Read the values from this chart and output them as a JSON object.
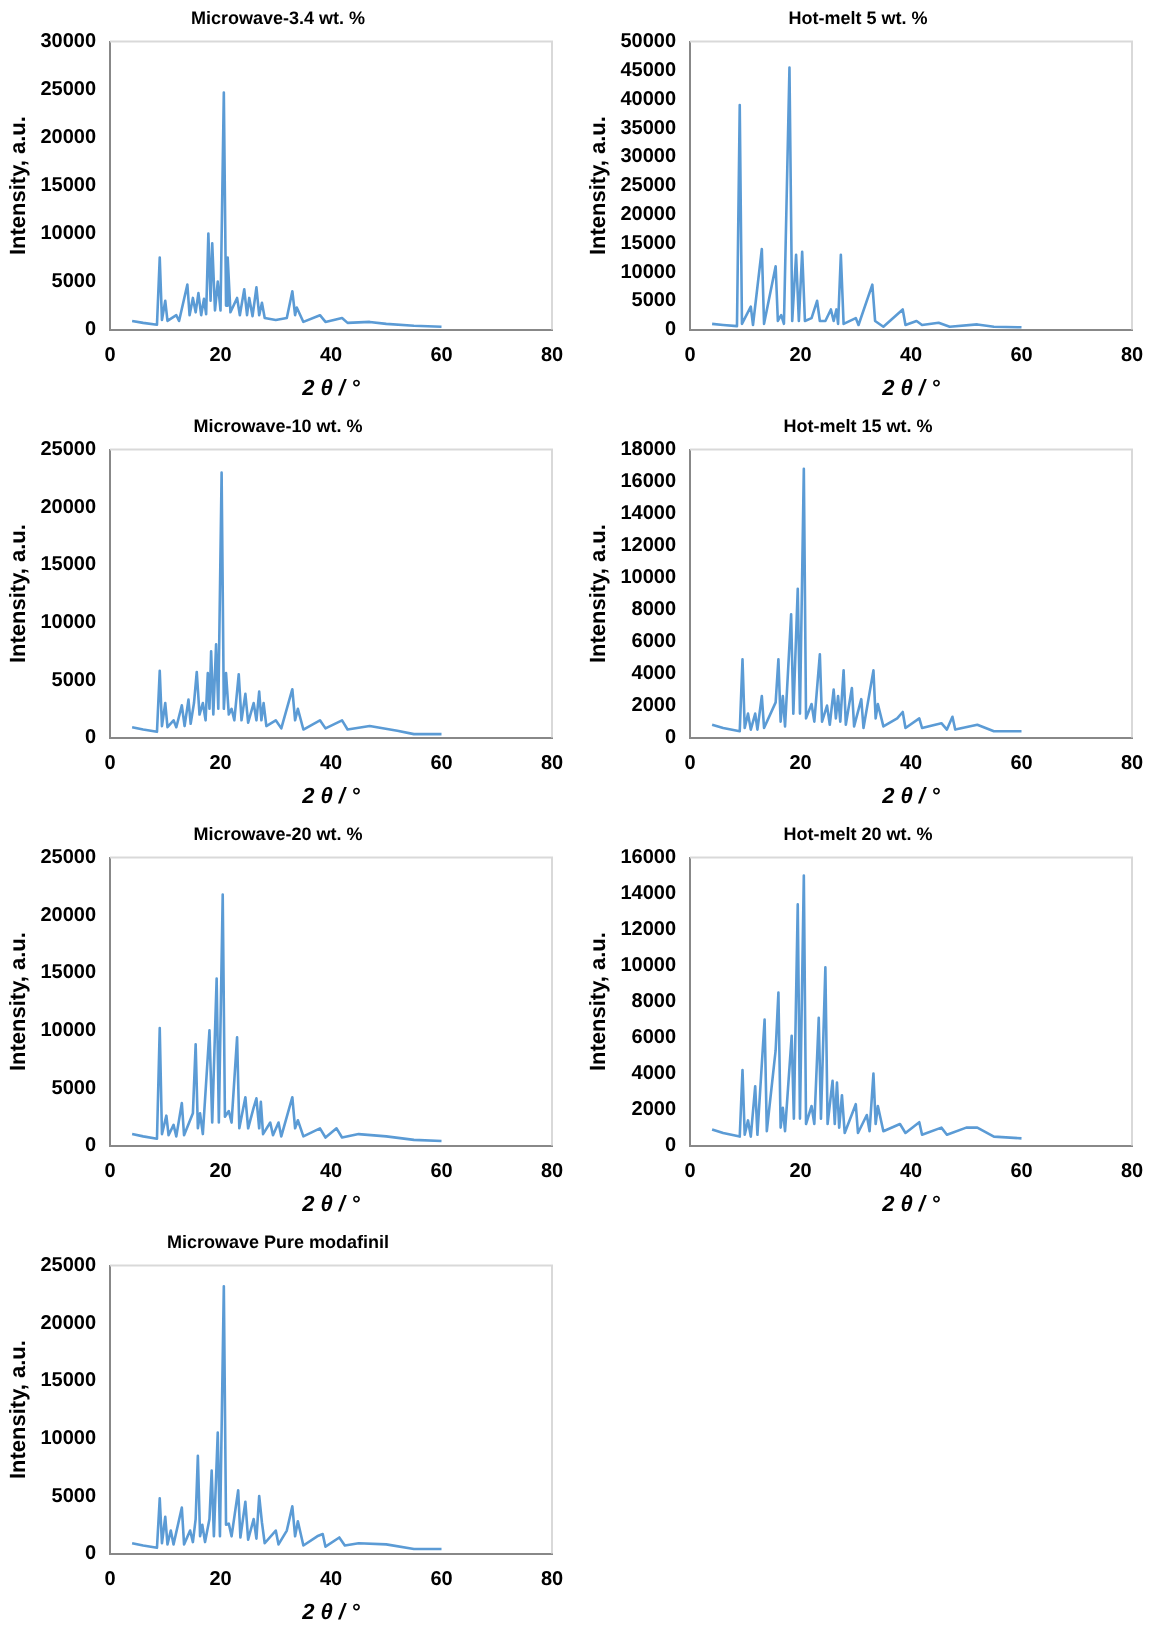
{
  "chart_data": [
    {
      "type": "line",
      "title": "Microwave-3.4 wt. %",
      "xlabel": "2 θ / °",
      "ylabel": "Intensity, a.u.",
      "marker": "none",
      "xlim": [
        0,
        80
      ],
      "xticks": [
        0,
        20,
        40,
        60,
        80
      ],
      "ylim": [
        0,
        30000
      ],
      "yticks": [
        0,
        5000,
        10000,
        15000,
        20000,
        25000,
        30000
      ],
      "x": [
        4,
        6,
        8.5,
        9,
        9.4,
        10,
        10.4,
        12,
        12.5,
        14,
        14.4,
        15,
        15.5,
        16,
        16.5,
        17,
        17.4,
        17.8,
        18.2,
        18.5,
        19,
        19.5,
        20,
        20.6,
        21,
        21.3,
        21.8,
        23,
        23.5,
        24.3,
        24.8,
        25.2,
        25.8,
        26.5,
        27,
        27.5,
        28,
        30,
        32,
        33,
        33.5,
        33.8,
        35,
        38,
        39,
        42,
        43,
        47,
        50,
        55,
        60
      ],
      "series": [
        {
          "color": "#5b9bd5",
          "values": [
            900,
            700,
            500,
            7500,
            1000,
            3000,
            900,
            1500,
            900,
            4700,
            1500,
            3300,
            1800,
            3800,
            1500,
            3200,
            1600,
            10000,
            3000,
            9000,
            2000,
            5000,
            2000,
            24700,
            2500,
            7500,
            1800,
            3300,
            1500,
            4200,
            1500,
            3300,
            1400,
            4400,
            1500,
            2800,
            1200,
            1000,
            1200,
            4000,
            1500,
            2300,
            800,
            1500,
            800,
            1200,
            700,
            800,
            600,
            400,
            300
          ]
        }
      ]
    },
    {
      "type": "line",
      "title": "Hot-melt 5 wt. %",
      "xlabel": "2 θ / °",
      "ylabel": "Intensity, a.u.",
      "marker": "none",
      "xlim": [
        0,
        80
      ],
      "xticks": [
        0,
        20,
        40,
        60,
        80
      ],
      "ylim": [
        0,
        50000
      ],
      "yticks": [
        0,
        5000,
        10000,
        15000,
        20000,
        25000,
        30000,
        35000,
        40000,
        45000,
        50000
      ],
      "x": [
        4,
        6,
        8.5,
        9,
        9.4,
        11,
        11.4,
        13,
        13.4,
        15.5,
        15.9,
        16.5,
        17,
        18,
        18.5,
        19.2,
        19.7,
        20.3,
        20.8,
        22,
        23,
        23.5,
        24.5,
        25.5,
        26,
        26.5,
        26.8,
        27.3,
        27.8,
        30,
        30.5,
        33,
        33.5,
        35,
        38.5,
        39,
        41,
        42,
        45,
        47,
        52,
        55,
        60
      ],
      "series": [
        {
          "color": "#5b9bd5",
          "values": [
            1000,
            800,
            600,
            39000,
            1000,
            4000,
            800,
            14000,
            1000,
            11000,
            1500,
            2500,
            1000,
            45500,
            1500,
            13000,
            1500,
            13500,
            1500,
            2000,
            5000,
            1500,
            1500,
            3500,
            1500,
            3500,
            1000,
            13000,
            1000,
            2000,
            800,
            7800,
            1500,
            500,
            3500,
            800,
            1500,
            800,
            1200,
            500,
            900,
            500,
            400
          ]
        }
      ]
    },
    {
      "type": "line",
      "title": "Microwave-10 wt. %",
      "xlabel": "2 θ / °",
      "ylabel": "Intensity, a.u.",
      "marker": "none",
      "xlim": [
        0,
        80
      ],
      "xticks": [
        0,
        20,
        40,
        60,
        80
      ],
      "ylim": [
        0,
        25000
      ],
      "yticks": [
        0,
        5000,
        10000,
        15000,
        20000,
        25000
      ],
      "x": [
        4,
        6,
        8.5,
        9,
        9.4,
        10,
        10.4,
        11.5,
        12,
        13,
        13.5,
        14.2,
        14.6,
        15.2,
        15.7,
        16.2,
        16.8,
        17.3,
        17.7,
        18,
        18.3,
        18.7,
        19.2,
        19.6,
        20.2,
        20.6,
        21,
        21.5,
        22,
        22.5,
        23.3,
        23.8,
        24.5,
        25,
        26,
        26.5,
        27,
        27.4,
        27.8,
        28.3,
        30,
        31,
        33,
        33.5,
        34,
        35,
        38,
        39,
        42,
        43,
        47,
        52,
        55,
        60
      ],
      "series": [
        {
          "color": "#5b9bd5",
          "values": [
            900,
            700,
            500,
            5800,
            1000,
            3000,
            900,
            1500,
            900,
            2800,
            1000,
            3300,
            1200,
            3000,
            5700,
            2000,
            3000,
            1500,
            5600,
            2500,
            7500,
            2000,
            8100,
            2500,
            23000,
            2500,
            5600,
            2000,
            2500,
            1500,
            5500,
            1500,
            3800,
            1300,
            3000,
            1500,
            4000,
            1500,
            3000,
            1000,
            1500,
            800,
            4200,
            1500,
            2500,
            700,
            1500,
            800,
            1500,
            700,
            1000,
            600,
            300,
            300
          ]
        }
      ]
    },
    {
      "type": "line",
      "title": "Hot-melt 15 wt. %",
      "xlabel": "2 θ / °",
      "ylabel": "Intensity, a.u.",
      "marker": "none",
      "xlim": [
        0,
        80
      ],
      "xticks": [
        0,
        20,
        40,
        60,
        80
      ],
      "ylim": [
        0,
        18000
      ],
      "yticks": [
        0,
        2000,
        4000,
        6000,
        8000,
        10000,
        12000,
        14000,
        16000,
        18000
      ],
      "x": [
        4,
        6,
        9,
        9.5,
        9.9,
        10.5,
        11,
        11.8,
        12.2,
        13,
        13.4,
        15.5,
        16,
        16.4,
        16.8,
        17.2,
        18.3,
        18.7,
        19.5,
        19.9,
        20.6,
        21,
        22,
        22.5,
        23.5,
        23.9,
        24.8,
        25.3,
        26,
        26.4,
        26.8,
        27.2,
        27.8,
        28.2,
        29.3,
        29.7,
        31,
        31.4,
        33.2,
        33.6,
        34,
        35,
        37.5,
        38.5,
        39,
        41.5,
        42,
        45.5,
        46.5,
        47.5,
        48,
        52,
        55,
        60
      ],
      "series": [
        {
          "color": "#5b9bd5",
          "values": [
            800,
            600,
            400,
            4900,
            600,
            1500,
            500,
            1500,
            500,
            2600,
            600,
            2200,
            4900,
            1000,
            2600,
            700,
            7700,
            1500,
            9300,
            1500,
            16800,
            1200,
            2100,
            1000,
            5200,
            1000,
            2000,
            800,
            3000,
            1200,
            2600,
            1000,
            4200,
            800,
            3100,
            700,
            2400,
            600,
            4200,
            1200,
            2100,
            700,
            1200,
            1600,
            600,
            1200,
            600,
            900,
            500,
            1300,
            500,
            800,
            400,
            400
          ]
        }
      ]
    },
    {
      "type": "line",
      "title": "Microwave-20 wt. %",
      "xlabel": "2 θ / °",
      "ylabel": "Intensity, a.u.",
      "marker": "none",
      "xlim": [
        0,
        80
      ],
      "xticks": [
        0,
        20,
        40,
        60,
        80
      ],
      "ylim": [
        0,
        25000
      ],
      "yticks": [
        0,
        5000,
        10000,
        15000,
        20000,
        25000
      ],
      "x": [
        4,
        6,
        8.5,
        9,
        9.4,
        10.2,
        10.6,
        11.5,
        12,
        13,
        13.4,
        15,
        15.5,
        15.9,
        16.3,
        16.8,
        18,
        18.5,
        19.3,
        19.7,
        20.4,
        20.8,
        21.5,
        22,
        23,
        23.4,
        24.5,
        25,
        26,
        26.5,
        27,
        27.3,
        27.7,
        29,
        29.5,
        30.5,
        31,
        33,
        33.5,
        34,
        35,
        38,
        39,
        41,
        42,
        45,
        50,
        55,
        60
      ],
      "series": [
        {
          "color": "#5b9bd5",
          "values": [
            1000,
            800,
            600,
            10200,
            1000,
            2600,
            900,
            1800,
            800,
            3700,
            900,
            2800,
            8800,
            1500,
            2800,
            1000,
            10000,
            2000,
            14500,
            2000,
            21800,
            2500,
            3000,
            2000,
            9400,
            1500,
            4200,
            1500,
            3300,
            4100,
            1500,
            3800,
            1000,
            2000,
            900,
            2000,
            800,
            4200,
            1500,
            2200,
            800,
            1500,
            700,
            1500,
            700,
            1000,
            800,
            500,
            400
          ]
        }
      ]
    },
    {
      "type": "line",
      "title": "Hot-melt 20 wt. %",
      "xlabel": "2 θ / °",
      "ylabel": "Intensity, a.u.",
      "marker": "none",
      "xlim": [
        0,
        80
      ],
      "xticks": [
        0,
        20,
        40,
        60,
        80
      ],
      "ylim": [
        0,
        16000
      ],
      "yticks": [
        0,
        2000,
        4000,
        6000,
        8000,
        10000,
        12000,
        14000,
        16000
      ],
      "x": [
        4,
        6,
        9,
        9.5,
        9.9,
        10.5,
        11,
        11.8,
        12.2,
        13.5,
        13.9,
        15.5,
        16,
        16.4,
        16.8,
        17.2,
        18.4,
        18.8,
        19.5,
        19.9,
        20.6,
        21,
        22,
        22.5,
        23.3,
        23.7,
        24.5,
        24.9,
        25.8,
        26.2,
        26.6,
        27,
        27.5,
        28,
        30,
        30.4,
        32,
        32.5,
        33.2,
        33.6,
        34,
        35,
        38,
        39,
        41.5,
        42,
        45.5,
        46.5,
        50,
        52,
        55,
        60
      ],
      "series": [
        {
          "color": "#5b9bd5",
          "values": [
            900,
            700,
            500,
            4200,
            600,
            1400,
            500,
            3300,
            600,
            7000,
            800,
            5300,
            8500,
            1000,
            2100,
            800,
            6100,
            1500,
            13400,
            1500,
            15000,
            1200,
            2200,
            1200,
            7100,
            1500,
            9900,
            1200,
            3600,
            1200,
            3500,
            1000,
            2800,
            700,
            2300,
            700,
            1700,
            800,
            4000,
            1200,
            2200,
            800,
            1200,
            700,
            1300,
            600,
            1000,
            600,
            1000,
            1000,
            500,
            400
          ]
        }
      ]
    },
    {
      "type": "line",
      "title": "Microwave Pure modafinil",
      "xlabel": "2 θ / °",
      "ylabel": "Intensity, a.u.",
      "marker": "none",
      "xlim": [
        0,
        80
      ],
      "xticks": [
        0,
        20,
        40,
        60,
        80
      ],
      "ylim": [
        0,
        25000
      ],
      "yticks": [
        0,
        5000,
        10000,
        15000,
        20000,
        25000
      ],
      "x": [
        4,
        6,
        8.5,
        9,
        9.4,
        10,
        10.4,
        11,
        11.5,
        13,
        13.4,
        14.5,
        15,
        15.5,
        15.9,
        16.3,
        16.7,
        17.2,
        18,
        18.4,
        18.8,
        19.5,
        19.9,
        20.6,
        21,
        21.5,
        22,
        23.2,
        23.6,
        24.5,
        25,
        26,
        26.5,
        27,
        27.5,
        28,
        30,
        30.5,
        32,
        33,
        33.5,
        34,
        35,
        37.5,
        38.5,
        39,
        41.5,
        42.5,
        45,
        50,
        55,
        60
      ],
      "series": [
        {
          "color": "#5b9bd5",
          "values": [
            900,
            700,
            500,
            4800,
            900,
            3200,
            800,
            2000,
            800,
            4000,
            800,
            2000,
            1000,
            3000,
            8500,
            1500,
            2500,
            1000,
            3000,
            7200,
            1500,
            10500,
            1500,
            23200,
            2500,
            2600,
            1500,
            5500,
            1400,
            4500,
            1200,
            3000,
            1300,
            5000,
            2700,
            900,
            2000,
            800,
            2000,
            4100,
            1500,
            2800,
            700,
            1500,
            1700,
            600,
            1400,
            700,
            900,
            800,
            400,
            400
          ]
        }
      ]
    }
  ]
}
